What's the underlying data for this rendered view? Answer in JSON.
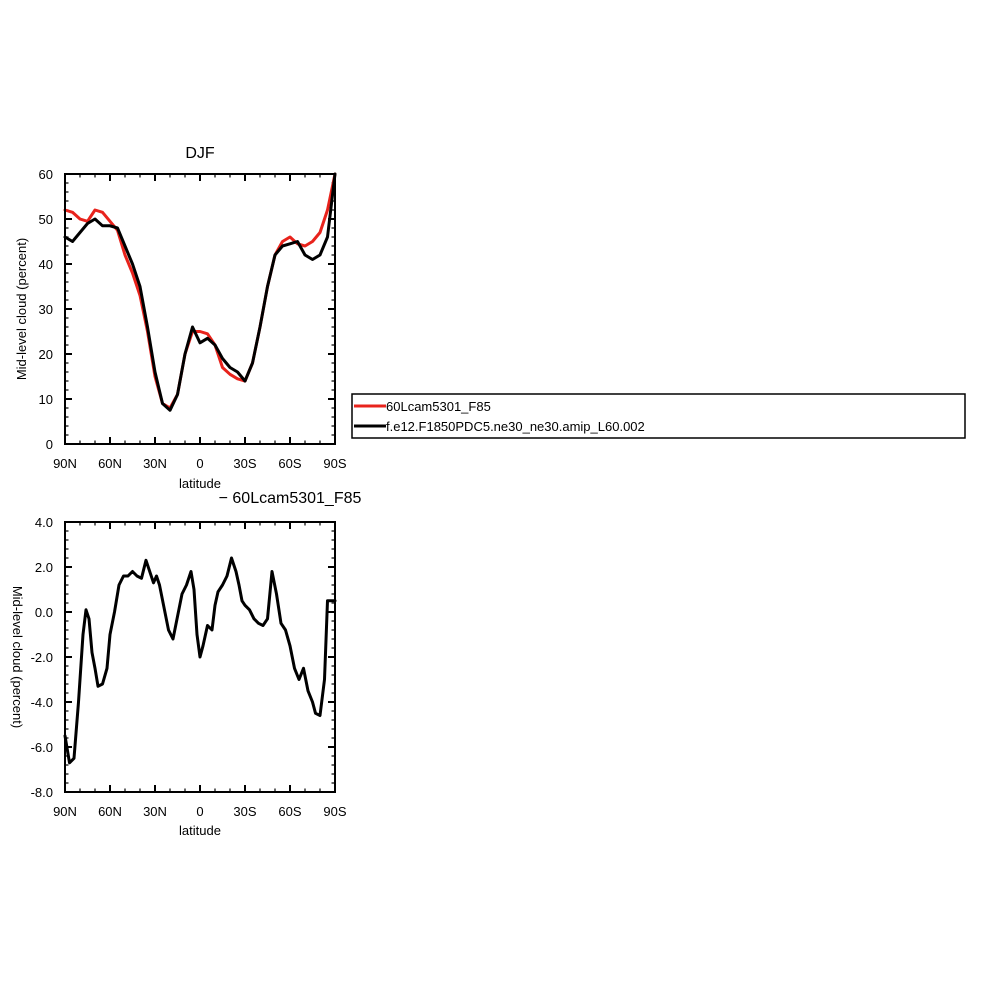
{
  "chart_data": [
    {
      "type": "line",
      "title": "DJF",
      "xlabel": "latitude",
      "ylabel": "Mid-level cloud (percent)",
      "ylim": [
        0,
        60
      ],
      "xlim": [
        -90,
        90
      ],
      "yticks": [
        "0",
        "10",
        "20",
        "30",
        "40",
        "50",
        "60"
      ],
      "ytick_values": [
        0,
        10,
        20,
        30,
        40,
        50,
        60
      ],
      "xticks": [
        "90N",
        "60N",
        "30N",
        "0",
        "30S",
        "60S",
        "90S"
      ],
      "xtick_values": [
        -90,
        -60,
        -30,
        0,
        30,
        60,
        90
      ],
      "legend_position": "right",
      "series": [
        {
          "name": "60Lcam5301_F85",
          "color": "#e8231c",
          "x": [
            -90,
            -85,
            -80,
            -75,
            -70,
            -65,
            -60,
            -55,
            -50,
            -45,
            -40,
            -35,
            -30,
            -25,
            -20,
            -15,
            -10,
            -5,
            0,
            5,
            10,
            15,
            20,
            25,
            30,
            35,
            40,
            45,
            50,
            55,
            60,
            65,
            70,
            75,
            80,
            85,
            90
          ],
          "y": [
            52,
            51.5,
            50,
            49.5,
            52,
            51.5,
            49.5,
            47.5,
            42,
            38,
            33,
            25,
            15,
            9,
            8,
            11,
            20,
            25,
            25,
            24.5,
            22,
            17,
            15.5,
            14.5,
            14,
            18,
            26,
            35,
            42,
            45,
            46,
            44.5,
            44,
            45,
            47,
            52,
            60
          ]
        },
        {
          "name": "f.e12.F1850PDC5.ne30_ne30.amip_L60.002",
          "color": "#000000",
          "x": [
            -90,
            -85,
            -80,
            -75,
            -70,
            -65,
            -60,
            -55,
            -50,
            -45,
            -40,
            -35,
            -30,
            -25,
            -20,
            -15,
            -10,
            -5,
            0,
            5,
            10,
            15,
            20,
            25,
            30,
            35,
            40,
            45,
            50,
            55,
            60,
            65,
            70,
            75,
            80,
            85,
            90
          ],
          "y": [
            46,
            45,
            47,
            49,
            50,
            48.5,
            48.5,
            48,
            44,
            40,
            35,
            26,
            16,
            9,
            7.5,
            11,
            20,
            26,
            22.5,
            23.5,
            22,
            19,
            17,
            16,
            14,
            18,
            26,
            35,
            42,
            44,
            44.5,
            45,
            42,
            41,
            42,
            46,
            60
          ]
        }
      ]
    },
    {
      "type": "line",
      "title": "− 60Lcam5301_F85",
      "xlabel": "latitude",
      "ylabel": "Mid-level cloud (percent)",
      "ylim": [
        -8,
        4
      ],
      "xlim": [
        -90,
        90
      ],
      "yticks": [
        "-8.0",
        "-6.0",
        "-4.0",
        "-2.0",
        "0.0",
        "2.0",
        "4.0"
      ],
      "ytick_values": [
        -8,
        -6,
        -4,
        -2,
        0,
        2,
        4
      ],
      "xticks": [
        "90N",
        "60N",
        "30N",
        "0",
        "30S",
        "60S",
        "90S"
      ],
      "xtick_values": [
        -90,
        -60,
        -30,
        0,
        30,
        60,
        90
      ],
      "series": [
        {
          "color": "#000000",
          "x": [
            -90,
            -87,
            -84,
            -81,
            -78,
            -76,
            -74,
            -72,
            -70,
            -68,
            -65,
            -62,
            -60,
            -57,
            -54,
            -51,
            -48,
            -45,
            -42,
            -39,
            -36,
            -33,
            -31,
            -29,
            -27,
            -24,
            -21,
            -18,
            -15,
            -12,
            -9,
            -6,
            -4,
            -2,
            0,
            2,
            5,
            8,
            10,
            12,
            15,
            18,
            21,
            24,
            26,
            28,
            30,
            33,
            36,
            39,
            42,
            45,
            48,
            51,
            54,
            57,
            60,
            63,
            66,
            69,
            72,
            75,
            77,
            80,
            83,
            85,
            87,
            90
          ],
          "y": [
            -5.5,
            -6.7,
            -6.5,
            -4,
            -1,
            0.1,
            -0.3,
            -1.8,
            -2.5,
            -3.3,
            -3.2,
            -2.5,
            -1,
            0,
            1.2,
            1.6,
            1.6,
            1.8,
            1.6,
            1.5,
            2.3,
            1.7,
            1.3,
            1.6,
            1.2,
            0.2,
            -0.8,
            -1.2,
            -0.2,
            0.8,
            1.2,
            1.8,
            1,
            -1,
            -2,
            -1.5,
            -0.6,
            -0.8,
            0.3,
            0.9,
            1.2,
            1.6,
            2.4,
            1.8,
            1.2,
            0.5,
            0.3,
            0.1,
            -0.3,
            -0.5,
            -0.6,
            -0.3,
            1.8,
            0.8,
            -0.5,
            -0.8,
            -1.5,
            -2.5,
            -3,
            -2.5,
            -3.5,
            -4,
            -4.5,
            -4.6,
            -3,
            0.5,
            0.5,
            0.5
          ]
        }
      ]
    }
  ]
}
